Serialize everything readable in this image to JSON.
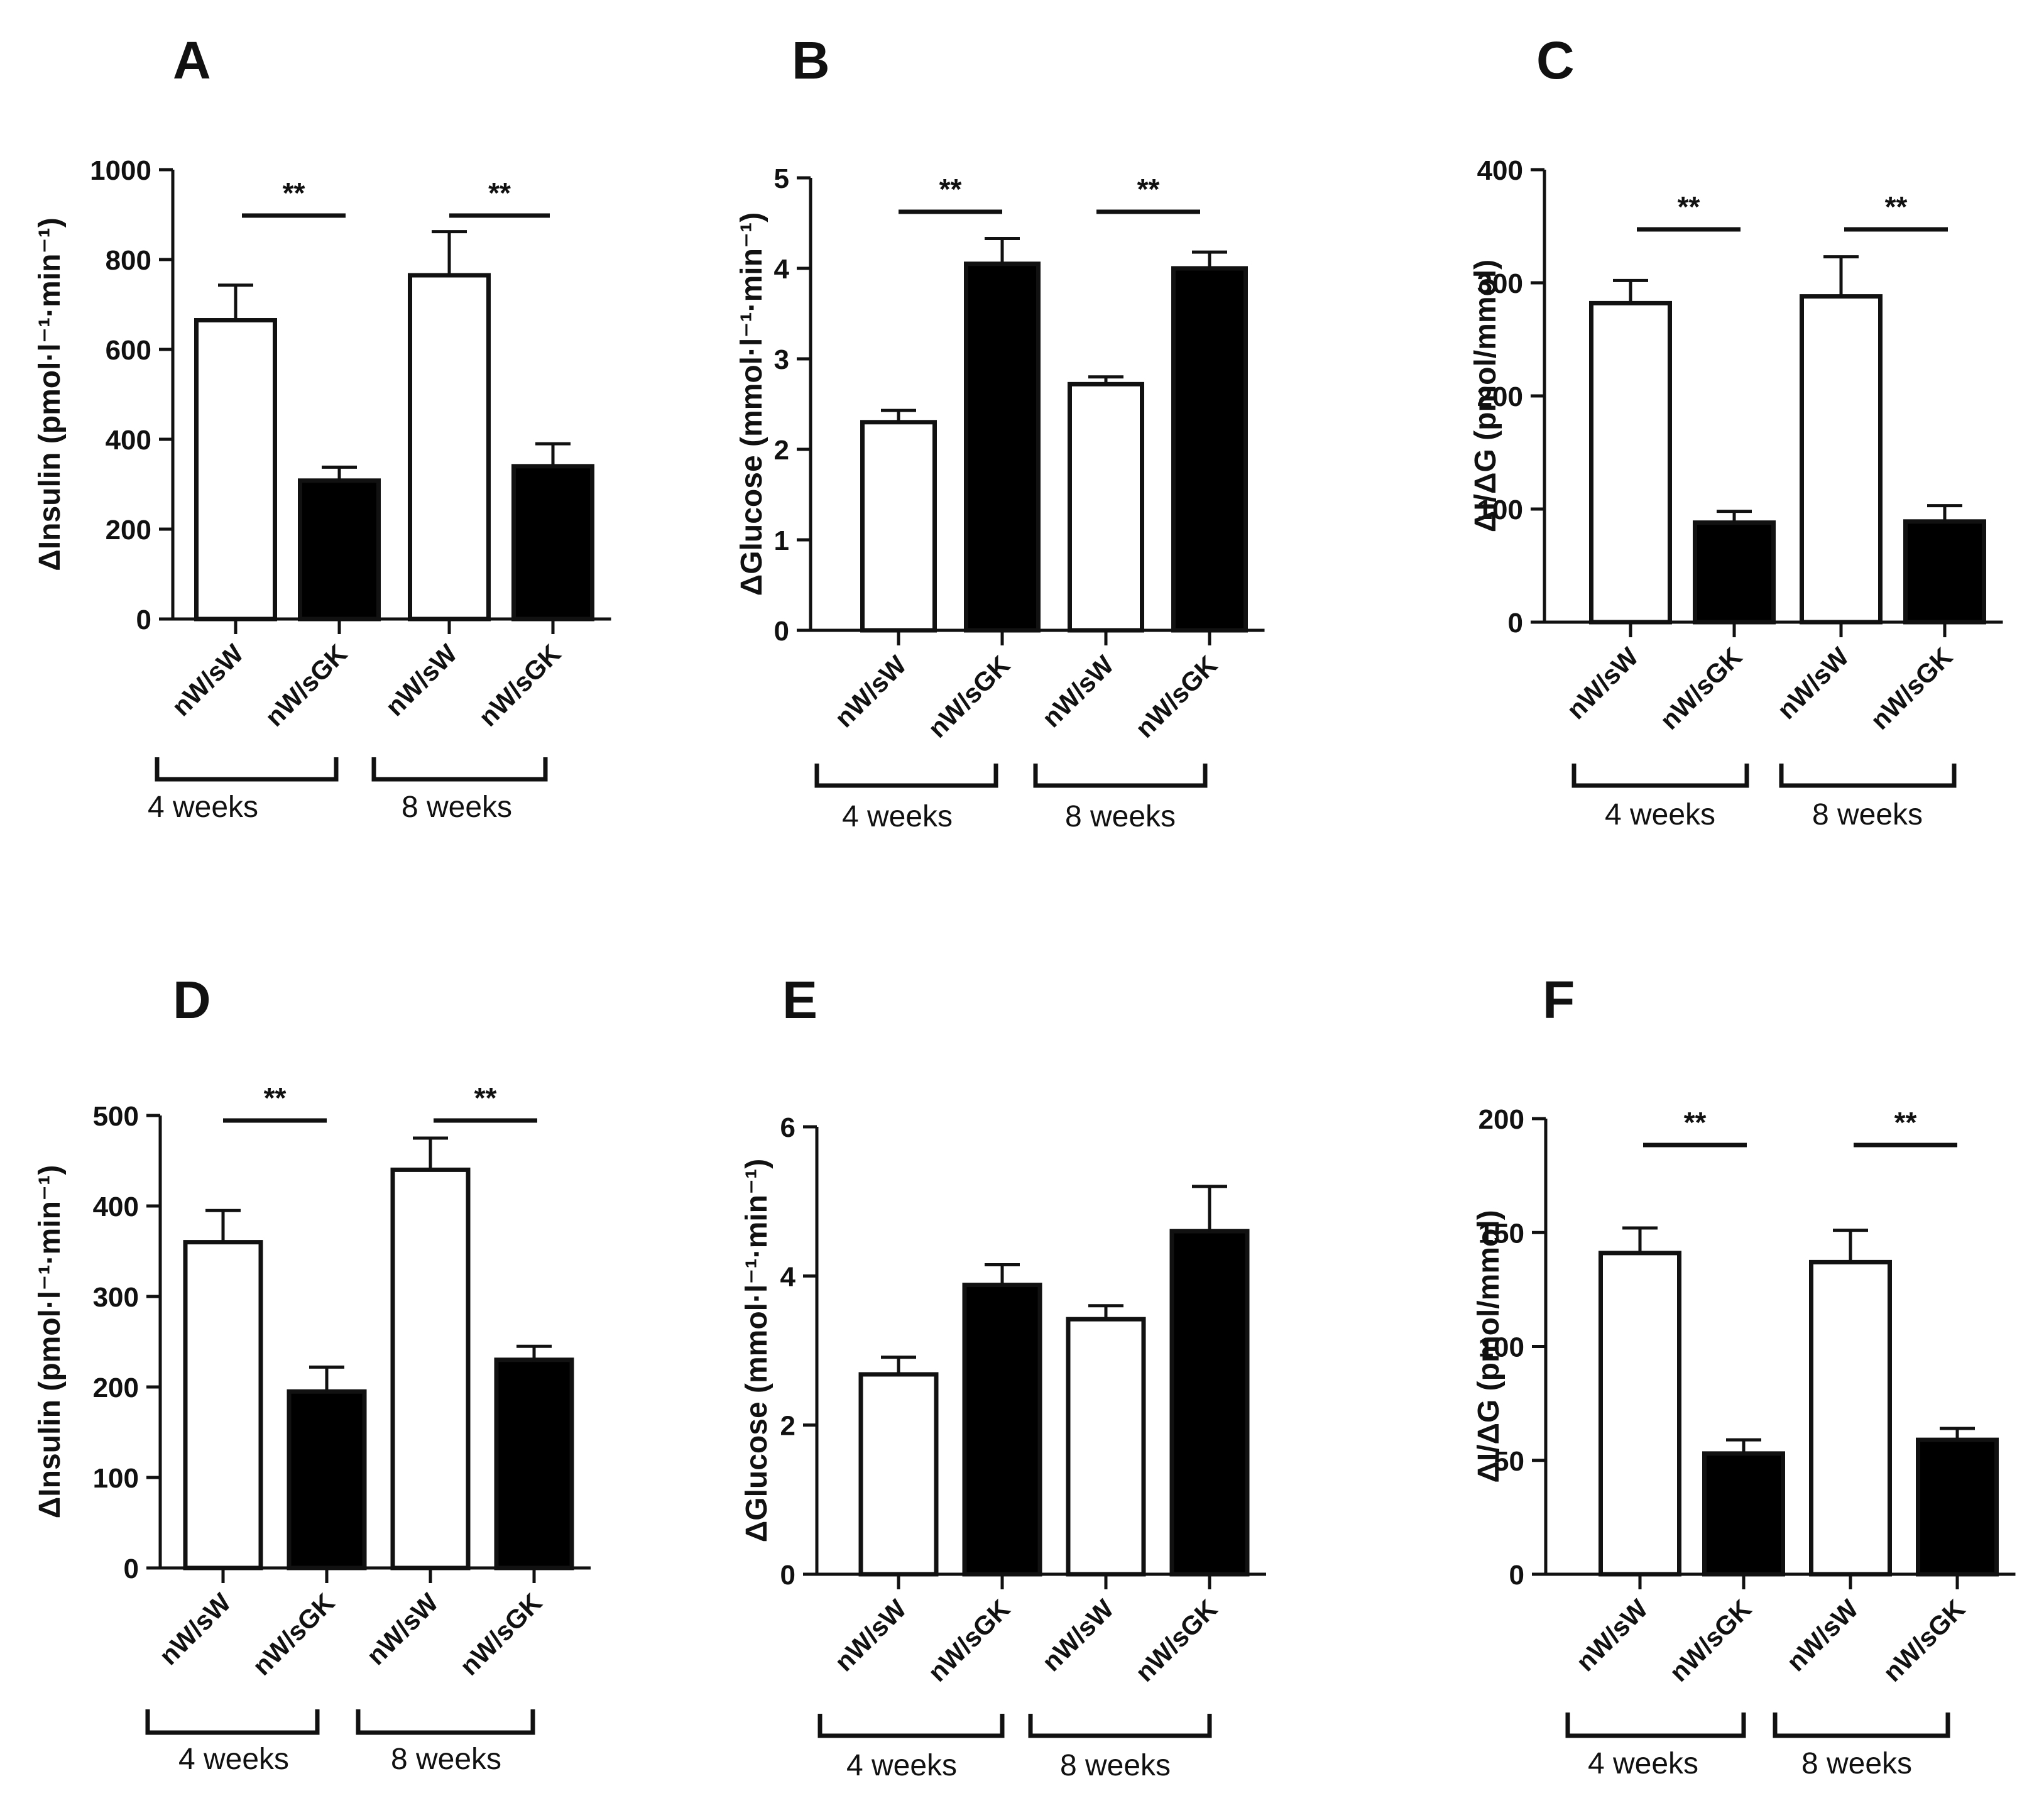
{
  "colors": {
    "ink": "#111111",
    "bar_white": "#ffffff",
    "bar_black": "#000000",
    "background": "#ffffff"
  },
  "chart_data": [
    {
      "panel": "A",
      "type": "bar",
      "ylabel": "ΔInsulin (pmol·l⁻¹·min⁻¹)",
      "ylim": [
        0,
        1000
      ],
      "yticks": [
        0,
        200,
        400,
        600,
        800,
        1000
      ],
      "categories": [
        "nW/sW",
        "nW/sGK",
        "nW/sW",
        "nW/sGK"
      ],
      "groups": [
        {
          "label": "4 weeks",
          "bars": [
            0,
            1
          ]
        },
        {
          "label": "8 weeks",
          "bars": [
            2,
            3
          ]
        }
      ],
      "values": [
        665,
        308,
        765,
        340
      ],
      "errors": [
        78,
        30,
        97,
        50
      ],
      "fills": [
        "white",
        "black",
        "white",
        "black"
      ],
      "significance": [
        {
          "bars": [
            0,
            1
          ],
          "label": "**"
        },
        {
          "bars": [
            2,
            3
          ],
          "label": "**"
        }
      ]
    },
    {
      "panel": "B",
      "type": "bar",
      "ylabel": "ΔGlucose (mmol·l⁻¹·min⁻¹)",
      "ylim": [
        0,
        5
      ],
      "yticks": [
        0,
        1,
        2,
        3,
        4,
        5
      ],
      "categories": [
        "nW/sW",
        "nW/sGK",
        "nW/sW",
        "nW/sGK"
      ],
      "groups": [
        {
          "label": "4 weeks",
          "bars": [
            0,
            1
          ]
        },
        {
          "label": "8 weeks",
          "bars": [
            2,
            3
          ]
        }
      ],
      "values": [
        2.3,
        4.05,
        2.72,
        4.0
      ],
      "errors": [
        0.13,
        0.28,
        0.08,
        0.18
      ],
      "fills": [
        "white",
        "black",
        "white",
        "black"
      ],
      "significance": [
        {
          "bars": [
            0,
            1
          ],
          "label": "**"
        },
        {
          "bars": [
            2,
            3
          ],
          "label": "**"
        }
      ]
    },
    {
      "panel": "C",
      "type": "bar",
      "ylabel": "ΔI/ΔG (pmol/mmol)",
      "ylim": [
        0,
        400
      ],
      "yticks": [
        0,
        100,
        200,
        300,
        400
      ],
      "categories": [
        "nW/sW",
        "nW/sGK",
        "nW/sW",
        "nW/sGK"
      ],
      "groups": [
        {
          "label": "4 weeks",
          "bars": [
            0,
            1
          ]
        },
        {
          "label": "8 weeks",
          "bars": [
            2,
            3
          ]
        }
      ],
      "values": [
        282,
        88,
        288,
        89
      ],
      "errors": [
        20,
        10,
        35,
        14
      ],
      "fills": [
        "white",
        "black",
        "white",
        "black"
      ],
      "significance": [
        {
          "bars": [
            0,
            1
          ],
          "label": "**"
        },
        {
          "bars": [
            2,
            3
          ],
          "label": "**"
        }
      ]
    },
    {
      "panel": "D",
      "type": "bar",
      "ylabel": "ΔInsulin (pmol·l⁻¹·min⁻¹)",
      "ylim": [
        0,
        500
      ],
      "yticks": [
        0,
        100,
        200,
        300,
        400,
        500
      ],
      "categories": [
        "nW/sW",
        "nW/sGK",
        "nW/sW",
        "nW/sGK"
      ],
      "groups": [
        {
          "label": "4 weeks",
          "bars": [
            0,
            1
          ]
        },
        {
          "label": "8 weeks",
          "bars": [
            2,
            3
          ]
        }
      ],
      "values": [
        360,
        195,
        440,
        230
      ],
      "errors": [
        35,
        27,
        35,
        15
      ],
      "fills": [
        "white",
        "black",
        "white",
        "black"
      ],
      "significance": [
        {
          "bars": [
            0,
            1
          ],
          "label": "**"
        },
        {
          "bars": [
            2,
            3
          ],
          "label": "**"
        }
      ]
    },
    {
      "panel": "E",
      "type": "bar",
      "ylabel": "ΔGlucose (mmol·l⁻¹·min⁻¹)",
      "ylim": [
        0,
        6
      ],
      "yticks": [
        0,
        2,
        4,
        6
      ],
      "categories": [
        "nW/sW",
        "nW/sGK",
        "nW/sW",
        "nW/sGK"
      ],
      "groups": [
        {
          "label": "4 weeks",
          "bars": [
            0,
            1
          ]
        },
        {
          "label": "8 weeks",
          "bars": [
            2,
            3
          ]
        }
      ],
      "values": [
        2.68,
        3.88,
        3.42,
        4.6
      ],
      "errors": [
        0.23,
        0.27,
        0.18,
        0.6
      ],
      "fills": [
        "white",
        "black",
        "white",
        "black"
      ],
      "significance": []
    },
    {
      "panel": "F",
      "type": "bar",
      "ylabel": "ΔI/ΔG (pmol/mmol)",
      "ylim": [
        0,
        200
      ],
      "yticks": [
        0,
        50,
        100,
        150,
        200
      ],
      "categories": [
        "nW/sW",
        "nW/sGK",
        "nW/sW",
        "nW/sGK"
      ],
      "groups": [
        {
          "label": "4 weeks",
          "bars": [
            0,
            1
          ]
        },
        {
          "label": "8 weeks",
          "bars": [
            2,
            3
          ]
        }
      ],
      "values": [
        141,
        53,
        137,
        59
      ],
      "errors": [
        11,
        6,
        14,
        5
      ],
      "fills": [
        "white",
        "black",
        "white",
        "black"
      ],
      "significance": [
        {
          "bars": [
            0,
            1
          ],
          "label": "**"
        },
        {
          "bars": [
            2,
            3
          ],
          "label": "**"
        }
      ]
    }
  ]
}
